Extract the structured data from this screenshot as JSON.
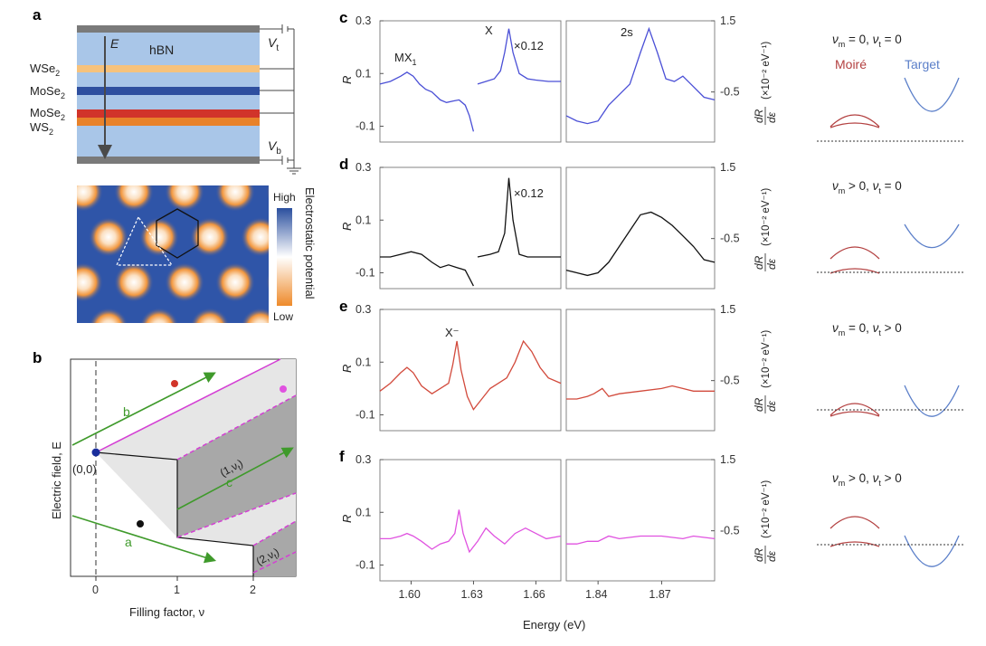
{
  "panel_letters": {
    "a": "a",
    "b": "b",
    "c": "c",
    "d": "d",
    "e": "e",
    "f": "f"
  },
  "colors": {
    "hbn": "#a9c6e8",
    "wse2": "#f6c27c",
    "mose2": "#2e4f9f",
    "mose2_ws2_red": "#d1342a",
    "ws2_orange": "#e8822a",
    "gate": "#7a7a7a",
    "blue_curve": "#4a4fd6",
    "black_curve": "#111111",
    "red_curve": "#d24a3c",
    "magenta_curve": "#e052e0",
    "moire_red": "#b34040",
    "target_blue": "#5b7fc9",
    "green_arrow": "#3f9a2b",
    "magenta_line": "#d43fd4"
  },
  "panel_a": {
    "arrow_label": "E",
    "hbn_label": "hBN",
    "vt_label": "V",
    "vt_sub": "t",
    "vb_label": "V",
    "vb_sub": "b",
    "layers": [
      {
        "name": "WSe",
        "sub": "2"
      },
      {
        "name": "MoSe",
        "sub": "2"
      },
      {
        "name": "MoSe",
        "sub": "2"
      },
      {
        "name": "WS",
        "sub": "2"
      }
    ],
    "colorbar_title": "Electrostatic potential",
    "colorbar_high": "High",
    "colorbar_low": "Low"
  },
  "panel_b": {
    "ylabel": "Electric field, E",
    "xlabel": "Filling factor, ν",
    "x_ticks": [
      "0",
      "1",
      "2"
    ],
    "origin_label": "(0,0)",
    "region1_label": "(1,ν",
    "region1_sub": "t",
    "region2_label": "(2,ν",
    "region2_sub": "t",
    "arrow_labels": [
      "a",
      "b",
      "c"
    ]
  },
  "spectra": {
    "left_ticks": [
      "0.3",
      "0.1",
      "-0.1"
    ],
    "right_ticks": [
      "1.5",
      "-0.5"
    ],
    "left_ylabel": "R",
    "right_ylabel_num": "dR",
    "right_ylabel_den": "dε",
    "right_ylabel_units": "(×10⁻² eV⁻¹)",
    "x_ticks_left": [
      "1.60",
      "1.63",
      "1.66"
    ],
    "x_ticks_right": [
      "1.84",
      "1.87"
    ],
    "xlabel": "Energy (eV)",
    "annotations": {
      "mx1": "MX",
      "mx1_sub": "1",
      "x": "X",
      "scale": "×0.12",
      "twos": "2s",
      "xminus": "X⁻"
    }
  },
  "cartoons": {
    "legend_moire": "Moiré",
    "legend_target": "Target",
    "conditions": [
      {
        "m_rel": "= 0",
        "t_rel": "= 0"
      },
      {
        "m_rel": "> 0",
        "t_rel": "= 0"
      },
      {
        "m_rel": "= 0",
        "t_rel": "> 0"
      },
      {
        "m_rel": "> 0",
        "t_rel": "> 0"
      }
    ]
  }
}
